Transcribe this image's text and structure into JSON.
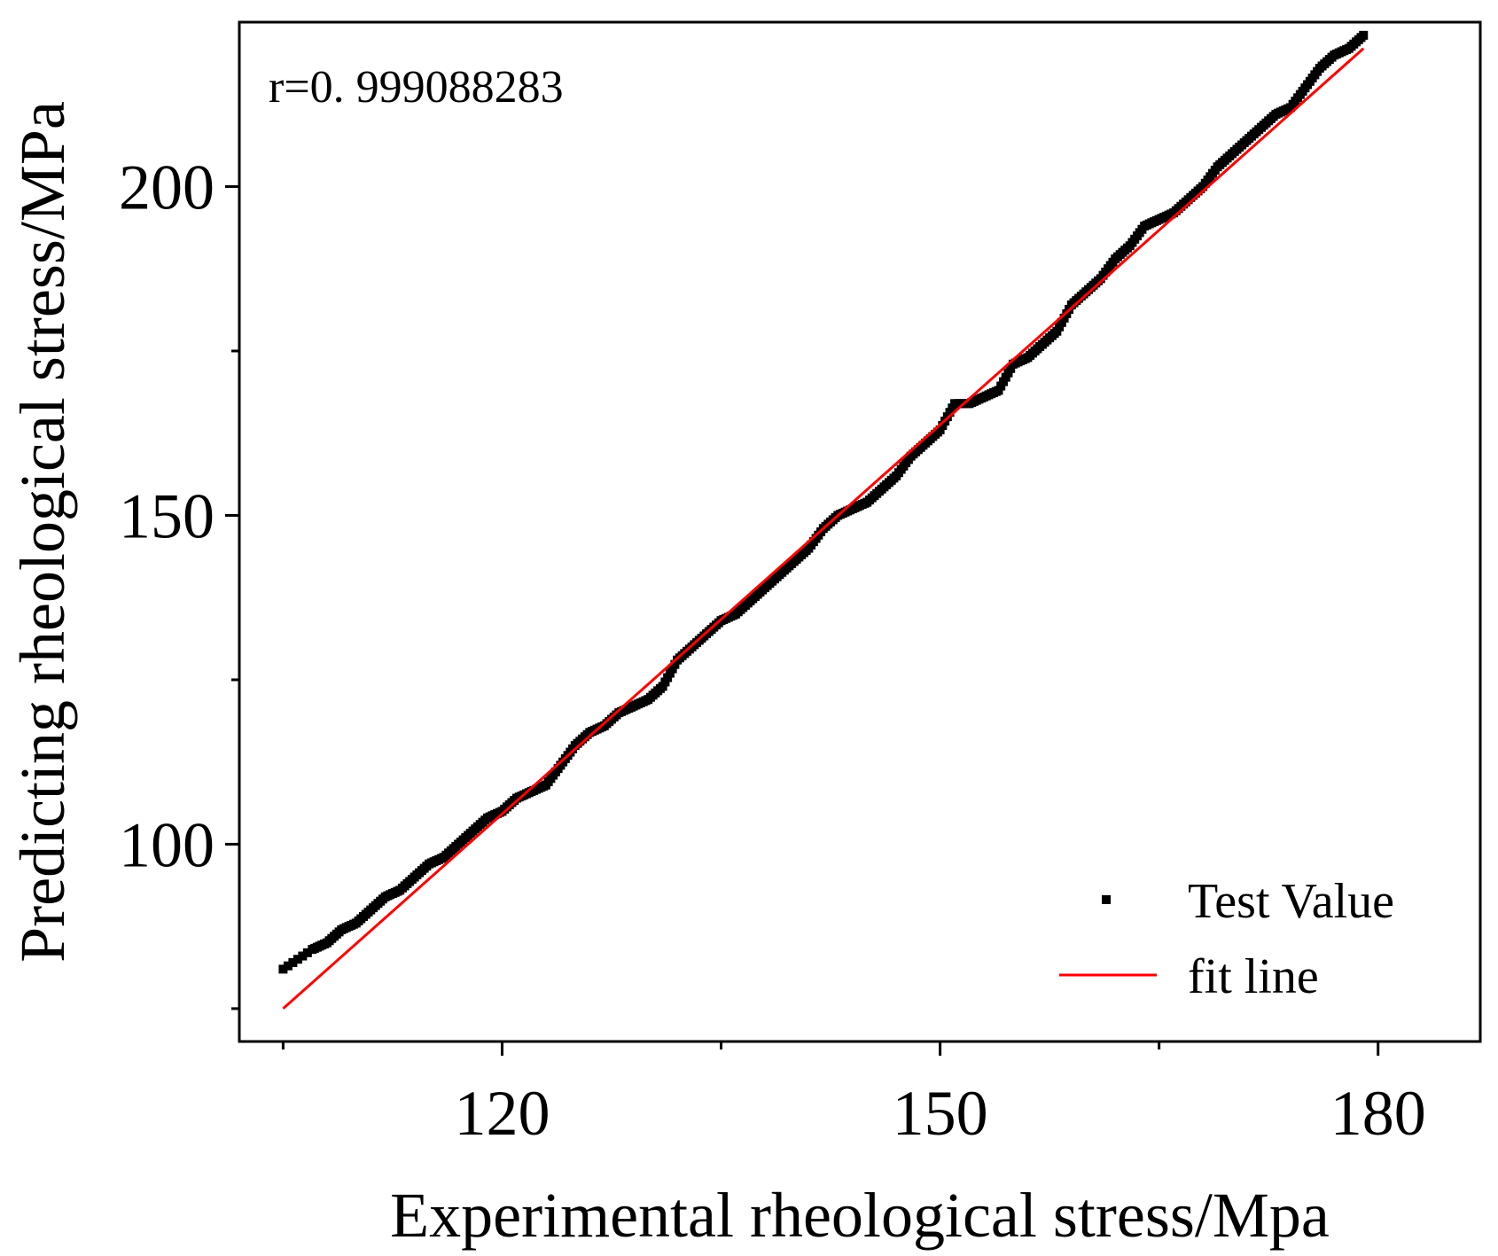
{
  "chart_data": {
    "type": "scatter",
    "title": "",
    "xlabel": "Experimental rheological stress/Mpa",
    "ylabel": "Predicting rheological stress/MPa",
    "xlim": [
      102,
      187
    ],
    "ylim": [
      70,
      225
    ],
    "xticks": [
      120,
      150,
      180
    ],
    "xticks_minor": [
      105,
      135,
      165
    ],
    "yticks": [
      100,
      150,
      200
    ],
    "yticks_minor": [
      75,
      125,
      175
    ],
    "xtick_labels": [
      "120",
      "150",
      "180"
    ],
    "ytick_labels": [
      "100",
      "150",
      "200"
    ],
    "annotation": "r=0. 999088283",
    "legend_position": "bottom-right",
    "series": [
      {
        "name": "Test Value",
        "kind": "points",
        "color": "#000000",
        "x": [
          105,
          107,
          108,
          109,
          110,
          111,
          112,
          113,
          114,
          115,
          116,
          117,
          118,
          119,
          120,
          121,
          122,
          123,
          124,
          125,
          126,
          127,
          128,
          129,
          130,
          131,
          132,
          133,
          134,
          135,
          136,
          137,
          138,
          139,
          140,
          141,
          142,
          143,
          144,
          145,
          146,
          147,
          148,
          149,
          150,
          151,
          152,
          153,
          154,
          155,
          156,
          157,
          158,
          159,
          160,
          161,
          162,
          163,
          164,
          165,
          166,
          167,
          168,
          169,
          170,
          171,
          172,
          173,
          174,
          175,
          176,
          177,
          178,
          179
        ],
        "y": [
          81,
          84,
          85,
          87,
          88,
          90,
          92,
          93,
          95,
          97,
          98,
          100,
          102,
          104,
          105,
          107,
          108,
          109,
          112,
          115,
          117,
          118,
          120,
          121,
          122,
          124,
          128,
          130,
          132,
          134,
          135,
          137,
          139,
          141,
          143,
          145,
          148,
          150,
          151,
          152,
          154,
          156,
          159,
          161,
          163,
          167,
          167,
          168,
          169,
          173,
          174,
          176,
          178,
          182,
          184,
          186,
          189,
          191,
          194,
          195,
          196,
          198,
          200,
          203,
          205,
          207,
          209,
          211,
          212,
          215,
          218,
          220,
          221,
          223
        ]
      },
      {
        "name": "fit line",
        "kind": "line",
        "color": "#ff0000",
        "x": [
          105,
          179
        ],
        "y": [
          75,
          221
        ]
      }
    ]
  }
}
